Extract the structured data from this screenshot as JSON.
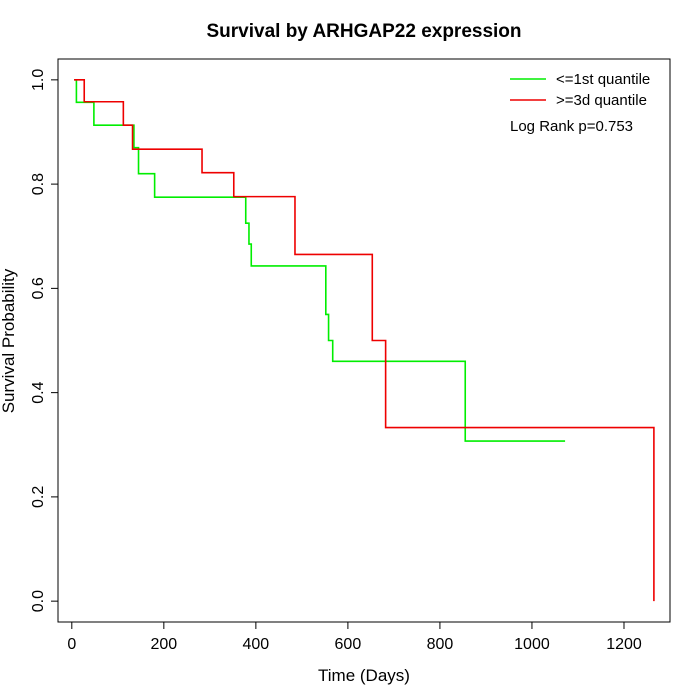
{
  "chart_data": {
    "type": "line",
    "title": "Survival by ARHGAP22 expression",
    "xlabel": "Time (Days)",
    "ylabel": "Survival Probability",
    "xlim": [
      -30,
      1300
    ],
    "ylim": [
      -0.04,
      1.04
    ],
    "x_ticks": [
      0,
      200,
      400,
      600,
      800,
      1000,
      1200
    ],
    "y_ticks": [
      0.0,
      0.2,
      0.4,
      0.6,
      0.8,
      1.0
    ],
    "x_tick_labels": [
      "0",
      "200",
      "400",
      "600",
      "800",
      "1000",
      "1200"
    ],
    "y_tick_labels": [
      "0.0",
      "0.2",
      "0.4",
      "0.6",
      "0.8",
      "1.0"
    ],
    "grid": false,
    "legend_position": "top-right",
    "annotation": "Log Rank p=0.753",
    "series": [
      {
        "name": "<=1st quantile",
        "color": "#00ee00",
        "x": [
          5,
          10,
          48,
          135,
          145,
          180,
          378,
          385,
          390,
          552,
          558,
          567,
          855,
          1072
        ],
        "y": [
          1.0,
          0.957,
          0.913,
          0.87,
          0.82,
          0.775,
          0.725,
          0.685,
          0.643,
          0.55,
          0.5,
          0.46,
          0.307,
          0.307
        ]
      },
      {
        "name": ">=3d quantile",
        "color": "#ee0000",
        "x": [
          5,
          27,
          112,
          132,
          283,
          352,
          485,
          653,
          682,
          1265,
          1265
        ],
        "y": [
          1.0,
          0.958,
          0.913,
          0.867,
          0.822,
          0.776,
          0.665,
          0.5,
          0.333,
          0.333,
          0.0
        ]
      }
    ]
  }
}
